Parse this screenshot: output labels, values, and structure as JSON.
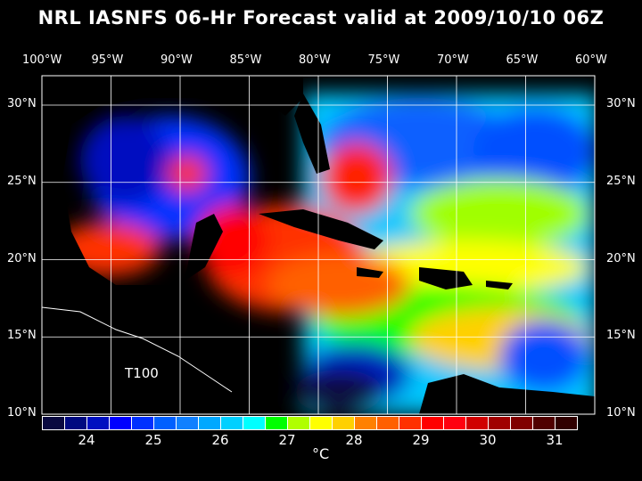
{
  "title": "NRL IASNFS  06-Hr Forecast valid at 2009/10/10 06Z",
  "lon_labels": [
    "100°W",
    "95°W",
    "90°W",
    "85°W",
    "80°W",
    "75°W",
    "70°W",
    "65°W",
    "60°W"
  ],
  "lat_labels": [
    "30°N",
    "25°N",
    "20°N",
    "15°N",
    "10°N"
  ],
  "annotation": "T100",
  "colorbar": {
    "colors": [
      "#0a0a40",
      "#000a80",
      "#0010c0",
      "#0000ff",
      "#0030ff",
      "#0060ff",
      "#1080ff",
      "#00a8ff",
      "#00d0ff",
      "#00ffff",
      "#00ff00",
      "#b0ff00",
      "#ffff00",
      "#ffd000",
      "#ff8000",
      "#ff6000",
      "#ff3000",
      "#ff0000",
      "#ff0010",
      "#d00000",
      "#a00000",
      "#800000",
      "#500000",
      "#300000"
    ],
    "ticks": [
      "24",
      "25",
      "26",
      "27",
      "28",
      "29",
      "30",
      "31"
    ],
    "unit": "°C"
  }
}
